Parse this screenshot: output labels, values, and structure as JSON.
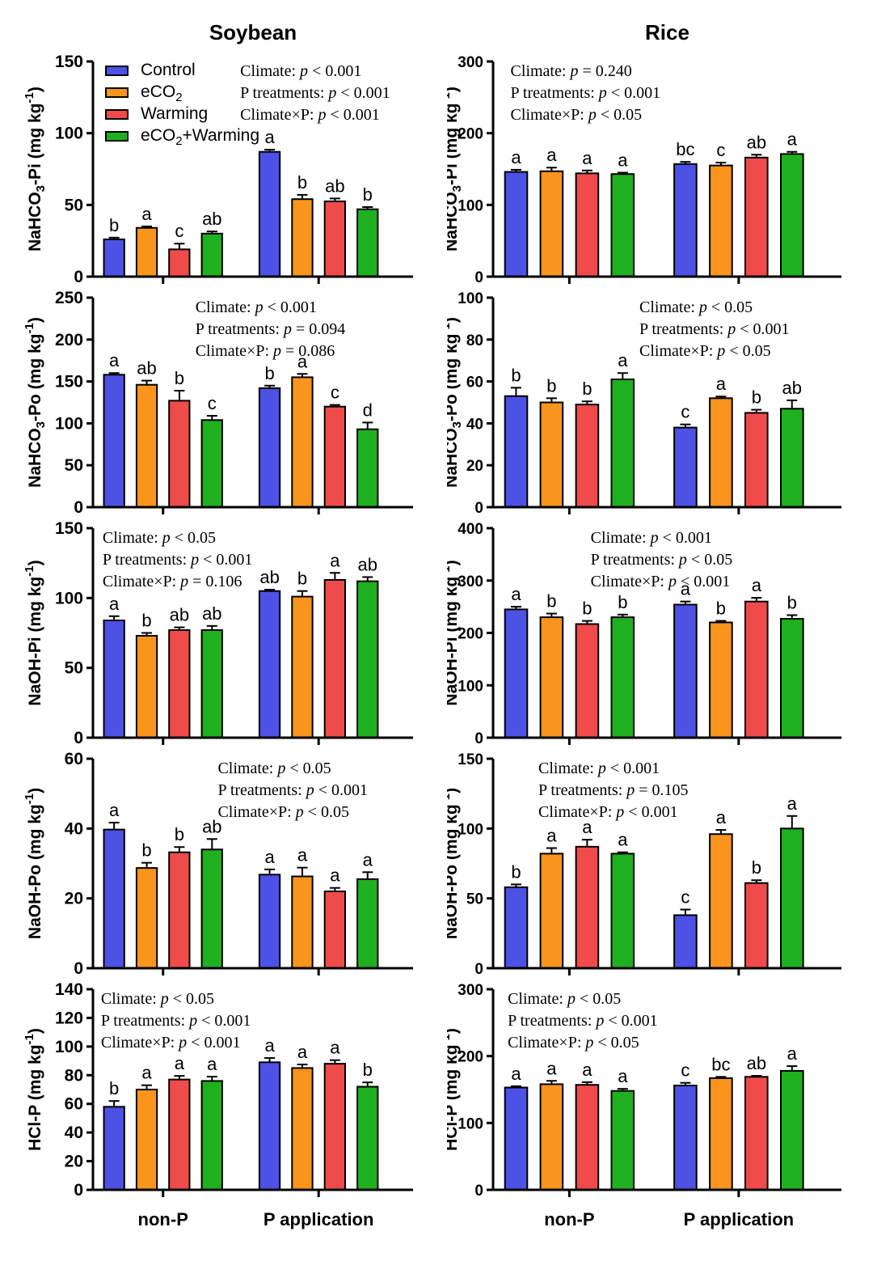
{
  "figure": {
    "columns": [
      {
        "title": "Soybean"
      },
      {
        "title": "Rice"
      }
    ]
  },
  "legend": {
    "position": "top-left-first-panel",
    "items": [
      {
        "key": "Control",
        "label": [
          "Control"
        ],
        "color": "#4D51E4"
      },
      {
        "key": "eCO2",
        "label": [
          "eCO",
          {
            "sub": "2"
          }
        ],
        "color": "#F9941C"
      },
      {
        "key": "Warming",
        "label": [
          "Warming"
        ],
        "color": "#F04B4B"
      },
      {
        "key": "eCO2+Warming",
        "label": [
          "eCO",
          {
            "sub": "2"
          },
          "+Warming"
        ],
        "color": "#1FB01F"
      }
    ]
  },
  "chart_data": [
    {
      "type": "bar",
      "crop": "Soybean",
      "name": "soybean-nahco3-pi",
      "ylabel": [
        "NaHCO",
        {
          "sub": "3"
        },
        "-Pi (mg kg",
        {
          "sup": "-1"
        },
        ")"
      ],
      "ylim": [
        0,
        150
      ],
      "yticks": [
        0,
        50,
        100,
        150
      ],
      "categories": [
        "non-P",
        "P application"
      ],
      "show_category_labels": false,
      "show_legend": true,
      "stats": [
        [
          "Climate: ",
          {
            "i": "p"
          },
          " < 0.001"
        ],
        [
          "P treatments: ",
          {
            "i": "p"
          },
          " < 0.001"
        ],
        [
          "Climate×P: ",
          {
            "i": "p"
          },
          " < 0.001"
        ]
      ],
      "stats_x": 0.46,
      "series": [
        {
          "name": "Control",
          "values": [
            26,
            87
          ],
          "errors": [
            1.2,
            1.5
          ],
          "letters": [
            "b",
            "a"
          ]
        },
        {
          "name": "eCO2",
          "values": [
            34,
            54
          ],
          "errors": [
            1,
            3
          ],
          "letters": [
            "a",
            "b"
          ]
        },
        {
          "name": "Warming",
          "values": [
            19,
            52.5
          ],
          "errors": [
            4,
            2
          ],
          "letters": [
            "c",
            "ab"
          ]
        },
        {
          "name": "eCO2+Warming",
          "values": [
            30,
            47
          ],
          "errors": [
            1.5,
            1.5
          ],
          "letters": [
            "ab",
            "b"
          ]
        }
      ]
    },
    {
      "type": "bar",
      "crop": "Rice",
      "name": "rice-nahco3-pi",
      "ylabel": [
        "NaHCO",
        {
          "sub": "3"
        },
        "-Pi (mg kg",
        {
          "sup": "-1"
        },
        ")"
      ],
      "ylim": [
        0,
        300
      ],
      "yticks": [
        0,
        100,
        200,
        300
      ],
      "categories": [
        "non-P",
        "P application"
      ],
      "show_category_labels": false,
      "show_legend": false,
      "stats": [
        [
          "Climate: ",
          {
            "i": "p"
          },
          " = 0.240"
        ],
        [
          "P treatments: ",
          {
            "i": "p"
          },
          " < 0.001"
        ],
        [
          "Climate×P: ",
          {
            "i": "p"
          },
          " < 0.05"
        ]
      ],
      "stats_x": 0.05,
      "series": [
        {
          "name": "Control",
          "values": [
            146,
            157
          ],
          "errors": [
            3,
            3
          ],
          "letters": [
            "a",
            "bc"
          ]
        },
        {
          "name": "eCO2",
          "values": [
            147,
            155
          ],
          "errors": [
            5,
            4
          ],
          "letters": [
            "a",
            "c"
          ]
        },
        {
          "name": "Warming",
          "values": [
            144,
            166
          ],
          "errors": [
            4,
            4
          ],
          "letters": [
            "a",
            "ab"
          ]
        },
        {
          "name": "eCO2+Warming",
          "values": [
            143,
            171
          ],
          "errors": [
            2,
            3
          ],
          "letters": [
            "a",
            "a"
          ]
        }
      ]
    },
    {
      "type": "bar",
      "crop": "Soybean",
      "name": "soybean-nahco3-po",
      "ylabel": [
        "NaHCO",
        {
          "sub": "3"
        },
        "-Po (mg kg",
        {
          "sup": "-1"
        },
        ")"
      ],
      "ylim": [
        0,
        250
      ],
      "yticks": [
        0,
        50,
        100,
        150,
        200,
        250
      ],
      "categories": [
        "non-P",
        "P application"
      ],
      "show_category_labels": false,
      "show_legend": false,
      "stats": [
        [
          "Climate: ",
          {
            "i": "p"
          },
          " < 0.001"
        ],
        [
          "P treatments: ",
          {
            "i": "p"
          },
          " = 0.094"
        ],
        [
          "Climate×P: ",
          {
            "i": "p"
          },
          " = 0.086"
        ]
      ],
      "stats_x": 0.32,
      "series": [
        {
          "name": "Control",
          "values": [
            158,
            142
          ],
          "errors": [
            2,
            3
          ],
          "letters": [
            "a",
            "b"
          ]
        },
        {
          "name": "eCO2",
          "values": [
            146,
            155
          ],
          "errors": [
            5,
            4
          ],
          "letters": [
            "ab",
            "a"
          ]
        },
        {
          "name": "Warming",
          "values": [
            127,
            120
          ],
          "errors": [
            12,
            2
          ],
          "letters": [
            "b",
            "c"
          ]
        },
        {
          "name": "eCO2+Warming",
          "values": [
            104,
            93
          ],
          "errors": [
            5,
            8
          ],
          "letters": [
            "c",
            "d"
          ]
        }
      ]
    },
    {
      "type": "bar",
      "crop": "Rice",
      "name": "rice-nahco3-po",
      "ylabel": [
        "NaHCO",
        {
          "sub": "3"
        },
        "-Po (mg kg",
        {
          "sup": "-1"
        },
        ")"
      ],
      "ylim": [
        0,
        100
      ],
      "yticks": [
        0,
        20,
        40,
        60,
        80,
        100
      ],
      "categories": [
        "non-P",
        "P application"
      ],
      "show_category_labels": false,
      "show_legend": false,
      "stats": [
        [
          "Climate: ",
          {
            "i": "p"
          },
          " < 0.05"
        ],
        [
          "P treatments: ",
          {
            "i": "p"
          },
          " < 0.001"
        ],
        [
          "Climate×P: ",
          {
            "i": "p"
          },
          " < 0.05"
        ]
      ],
      "stats_x": 0.42,
      "series": [
        {
          "name": "Control",
          "values": [
            53,
            38
          ],
          "errors": [
            4,
            1.5
          ],
          "letters": [
            "b",
            "c"
          ]
        },
        {
          "name": "eCO2",
          "values": [
            50,
            52
          ],
          "errors": [
            2,
            0.8
          ],
          "letters": [
            "b",
            "a"
          ]
        },
        {
          "name": "Warming",
          "values": [
            49,
            45
          ],
          "errors": [
            1.5,
            1.5
          ],
          "letters": [
            "b",
            "b"
          ]
        },
        {
          "name": "eCO2+Warming",
          "values": [
            61,
            47
          ],
          "errors": [
            3,
            4
          ],
          "letters": [
            "a",
            "ab"
          ]
        }
      ]
    },
    {
      "type": "bar",
      "crop": "Soybean",
      "name": "soybean-naoh-pi",
      "ylabel": [
        "NaOH-Pi (mg kg",
        {
          "sup": "-1"
        },
        ")"
      ],
      "ylim": [
        0,
        150
      ],
      "yticks": [
        0,
        50,
        100,
        150
      ],
      "categories": [
        "non-P",
        "P application"
      ],
      "show_category_labels": false,
      "show_legend": false,
      "stats": [
        [
          "Climate: ",
          {
            "i": "p"
          },
          " < 0.05"
        ],
        [
          "P treatments: ",
          {
            "i": "p"
          },
          " < 0.001"
        ],
        [
          "Climate×P: ",
          {
            "i": "p"
          },
          " = 0.106"
        ]
      ],
      "stats_x": 0.03,
      "series": [
        {
          "name": "Control",
          "values": [
            84,
            105
          ],
          "errors": [
            3,
            1
          ],
          "letters": [
            "a",
            "ab"
          ]
        },
        {
          "name": "eCO2",
          "values": [
            73,
            101
          ],
          "errors": [
            2,
            4
          ],
          "letters": [
            "b",
            "b"
          ]
        },
        {
          "name": "Warming",
          "values": [
            77,
            113
          ],
          "errors": [
            2,
            5
          ],
          "letters": [
            "ab",
            "a"
          ]
        },
        {
          "name": "eCO2+Warming",
          "values": [
            77,
            112
          ],
          "errors": [
            3,
            3
          ],
          "letters": [
            "ab",
            "ab"
          ]
        }
      ]
    },
    {
      "type": "bar",
      "crop": "Rice",
      "name": "rice-naoh-pi",
      "ylabel": [
        "NaOH-Pi (mg kg",
        {
          "sup": "-1"
        },
        ")"
      ],
      "ylim": [
        0,
        400
      ],
      "yticks": [
        0,
        100,
        200,
        300,
        400
      ],
      "categories": [
        "non-P",
        "P application"
      ],
      "show_category_labels": false,
      "show_legend": false,
      "stats": [
        [
          "Climate: ",
          {
            "i": "p"
          },
          " < 0.001"
        ],
        [
          "P treatments: ",
          {
            "i": "p"
          },
          " < 0.05"
        ],
        [
          "Climate×P: ",
          {
            "i": "p"
          },
          " < 0.001"
        ]
      ],
      "stats_x": 0.28,
      "series": [
        {
          "name": "Control",
          "values": [
            245,
            254
          ],
          "errors": [
            5,
            6
          ],
          "letters": [
            "a",
            "a"
          ]
        },
        {
          "name": "eCO2",
          "values": [
            230,
            220
          ],
          "errors": [
            7,
            3
          ],
          "letters": [
            "b",
            "b"
          ]
        },
        {
          "name": "Warming",
          "values": [
            217,
            260
          ],
          "errors": [
            6,
            7
          ],
          "letters": [
            "b",
            "a"
          ]
        },
        {
          "name": "eCO2+Warming",
          "values": [
            230,
            227
          ],
          "errors": [
            5,
            7
          ],
          "letters": [
            "b",
            "b"
          ]
        }
      ]
    },
    {
      "type": "bar",
      "crop": "Soybean",
      "name": "soybean-naoh-po",
      "ylabel": [
        "NaOH-Po (mg kg",
        {
          "sup": "-1"
        },
        ")"
      ],
      "ylim": [
        0,
        60
      ],
      "yticks": [
        0,
        20,
        40,
        60
      ],
      "categories": [
        "non-P",
        "P application"
      ],
      "show_category_labels": false,
      "show_legend": false,
      "stats": [
        [
          "Climate: ",
          {
            "i": "p"
          },
          " < 0.05"
        ],
        [
          "P treatments: ",
          {
            "i": "p"
          },
          " < 0.001"
        ],
        [
          "Climate×P: ",
          {
            "i": "p"
          },
          " < 0.05"
        ]
      ],
      "stats_x": 0.39,
      "series": [
        {
          "name": "Control",
          "values": [
            39.7,
            26.8
          ],
          "errors": [
            2,
            1.5
          ],
          "letters": [
            "a",
            "a"
          ]
        },
        {
          "name": "eCO2",
          "values": [
            28.7,
            26.3
          ],
          "errors": [
            1.5,
            2.5
          ],
          "letters": [
            "b",
            "a"
          ]
        },
        {
          "name": "Warming",
          "values": [
            33.2,
            22
          ],
          "errors": [
            1.5,
            1
          ],
          "letters": [
            "b",
            "a"
          ]
        },
        {
          "name": "eCO2+Warming",
          "values": [
            34,
            25.5
          ],
          "errors": [
            3,
            2
          ],
          "letters": [
            "ab",
            "a"
          ]
        }
      ]
    },
    {
      "type": "bar",
      "crop": "Rice",
      "name": "rice-naoh-po",
      "ylabel": [
        "NaOH-Po (mg kg",
        {
          "sup": "-1"
        },
        ")"
      ],
      "ylim": [
        0,
        150
      ],
      "yticks": [
        0,
        50,
        100,
        150
      ],
      "categories": [
        "non-P",
        "P application"
      ],
      "show_category_labels": false,
      "show_legend": false,
      "stats": [
        [
          "Climate: ",
          {
            "i": "p"
          },
          " < 0.001"
        ],
        [
          "P treatments: ",
          {
            "i": "p"
          },
          " = 0.105"
        ],
        [
          "Climate×P: ",
          {
            "i": "p"
          },
          " < 0.001"
        ]
      ],
      "stats_x": 0.13,
      "series": [
        {
          "name": "Control",
          "values": [
            58,
            38
          ],
          "errors": [
            2,
            4
          ],
          "letters": [
            "b",
            "c"
          ]
        },
        {
          "name": "eCO2",
          "values": [
            82,
            96
          ],
          "errors": [
            4,
            3
          ],
          "letters": [
            "a",
            "a"
          ]
        },
        {
          "name": "Warming",
          "values": [
            87,
            61
          ],
          "errors": [
            5,
            2
          ],
          "letters": [
            "a",
            "b"
          ]
        },
        {
          "name": "eCO2+Warming",
          "values": [
            82,
            100
          ],
          "errors": [
            1,
            9
          ],
          "letters": [
            "a",
            "a"
          ]
        }
      ]
    },
    {
      "type": "bar",
      "crop": "Soybean",
      "name": "soybean-hcl-p",
      "ylabel": [
        "HCl-P (mg kg",
        {
          "sup": "-1"
        },
        ")"
      ],
      "ylim": [
        0,
        140
      ],
      "yticks": [
        0,
        20,
        40,
        60,
        80,
        100,
        120,
        140
      ],
      "categories": [
        "non-P",
        "P application"
      ],
      "show_category_labels": true,
      "show_legend": false,
      "stats": [
        [
          "Climate: ",
          {
            "i": "p"
          },
          " < 0.05"
        ],
        [
          "P treatments: ",
          {
            "i": "p"
          },
          " < 0.001"
        ],
        [
          "Climate×P: ",
          {
            "i": "p"
          },
          " < 0.001"
        ]
      ],
      "stats_x": 0.025,
      "series": [
        {
          "name": "Control",
          "values": [
            58,
            89
          ],
          "errors": [
            4,
            3
          ],
          "letters": [
            "b",
            "a"
          ]
        },
        {
          "name": "eCO2",
          "values": [
            70,
            85
          ],
          "errors": [
            3,
            2.5
          ],
          "letters": [
            "a",
            "a"
          ]
        },
        {
          "name": "Warming",
          "values": [
            77,
            88
          ],
          "errors": [
            2.5,
            2.5
          ],
          "letters": [
            "a",
            "a"
          ]
        },
        {
          "name": "eCO2+Warming",
          "values": [
            76,
            72
          ],
          "errors": [
            3,
            3
          ],
          "letters": [
            "a",
            "b"
          ]
        }
      ]
    },
    {
      "type": "bar",
      "crop": "Rice",
      "name": "rice-hcl-p",
      "ylabel": [
        "HCl-P (mg kg",
        {
          "sup": "-1"
        },
        ")"
      ],
      "ylim": [
        0,
        300
      ],
      "yticks": [
        0,
        100,
        200,
        300
      ],
      "categories": [
        "non-P",
        "P application"
      ],
      "show_category_labels": true,
      "show_legend": false,
      "stats": [
        [
          "Climate: ",
          {
            "i": "p"
          },
          " < 0.05"
        ],
        [
          "P treatments: ",
          {
            "i": "p"
          },
          " < 0.001"
        ],
        [
          "Climate×P: ",
          {
            "i": "p"
          },
          " < 0.05"
        ]
      ],
      "stats_x": 0.042,
      "series": [
        {
          "name": "Control",
          "values": [
            153,
            156
          ],
          "errors": [
            2,
            4
          ],
          "letters": [
            "a",
            "c"
          ]
        },
        {
          "name": "eCO2",
          "values": [
            158,
            167
          ],
          "errors": [
            5,
            2
          ],
          "letters": [
            "a",
            "bc"
          ]
        },
        {
          "name": "Warming",
          "values": [
            157,
            169
          ],
          "errors": [
            4,
            1.5
          ],
          "letters": [
            "a",
            "ab"
          ]
        },
        {
          "name": "eCO2+Warming",
          "values": [
            148,
            178
          ],
          "errors": [
            3,
            7
          ],
          "letters": [
            "a",
            "a"
          ]
        }
      ]
    }
  ]
}
